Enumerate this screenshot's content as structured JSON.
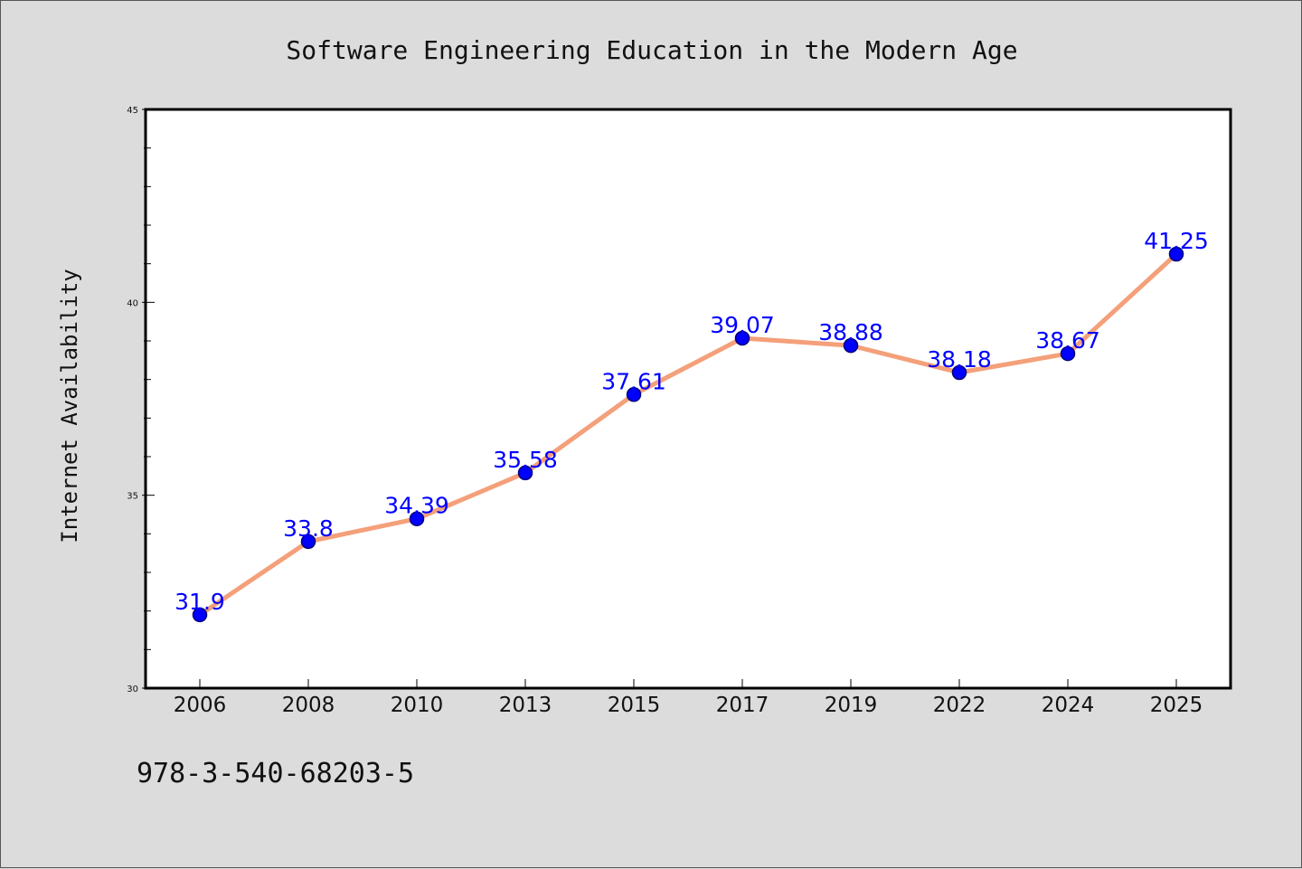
{
  "chart_data": {
    "type": "line",
    "title": "Software Engineering Education in the Modern Age",
    "xlabel": "",
    "ylabel": "Internet Availability",
    "categories": [
      "2006",
      "2008",
      "2010",
      "2013",
      "2015",
      "2017",
      "2019",
      "2022",
      "2024",
      "2025"
    ],
    "series": [
      {
        "values": [
          31.9,
          33.8,
          34.39,
          35.58,
          37.61,
          39.07,
          38.88,
          38.18,
          38.67,
          41.25
        ],
        "labels": [
          "31.9",
          "33.8",
          "34.39",
          "35.58",
          "37.61",
          "39.07",
          "38.88",
          "38.18",
          "38.67",
          "41.25"
        ],
        "line_color": "#f4a07a",
        "marker_color": "#0000ff"
      }
    ],
    "ylim": [
      30,
      45
    ],
    "yticks": [
      "30",
      "35",
      "40",
      "45"
    ],
    "grid": false,
    "legend": "none"
  },
  "footer": {
    "isbn": "978-3-540-68203-5"
  },
  "colors": {
    "background": "#dcdcdc",
    "plot_area": "#ffffff",
    "label_color": "#0000ff"
  }
}
